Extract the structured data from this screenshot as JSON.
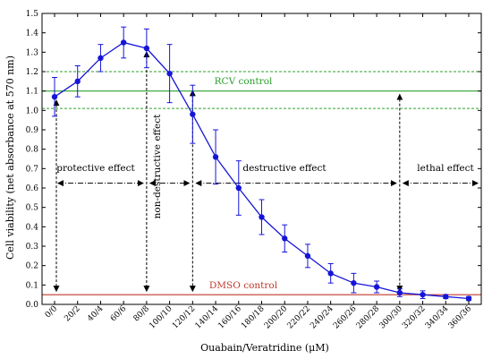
{
  "chart_data": {
    "type": "line",
    "xlabel": "Ouabain/Veratridine (μM)",
    "ylabel": "Cell viability (net absorbance at 570 nm)",
    "ylim": [
      0,
      1.5
    ],
    "y_ticks": [
      "0.0",
      "0.1",
      "0.2",
      "0.3",
      "0.4",
      "0.5",
      "0.6",
      "0.7",
      "0.8",
      "0.9",
      "1.0",
      "1.1",
      "1.2",
      "1.3",
      "1.4",
      "1.5"
    ],
    "categories": [
      "0/0",
      "20/2",
      "40/4",
      "60/6",
      "80/8",
      "100/10",
      "120/12",
      "140/14",
      "160/16",
      "180/18",
      "200/20",
      "220/22",
      "240/24",
      "260/26",
      "280/28",
      "300/30",
      "320/32",
      "340/34",
      "360/36"
    ],
    "series": [
      {
        "values": [
          1.07,
          1.15,
          1.27,
          1.35,
          1.32,
          1.19,
          0.98,
          0.76,
          0.6,
          0.45,
          0.34,
          0.25,
          0.16,
          0.11,
          0.09,
          0.06,
          0.05,
          0.04,
          0.03
        ],
        "errors": [
          0.1,
          0.08,
          0.07,
          0.08,
          0.1,
          0.15,
          0.15,
          0.14,
          0.14,
          0.09,
          0.07,
          0.06,
          0.05,
          0.05,
          0.03,
          0.02,
          0.02,
          0.01,
          0.01
        ],
        "color": "#1515d8"
      }
    ],
    "reference_lines": [
      {
        "label": "RCV control",
        "value": 1.1,
        "band": [
          1.01,
          1.2
        ],
        "color": "#2ca02c"
      },
      {
        "label": "DMSO control",
        "value": 0.05,
        "color": "#c0392b"
      }
    ],
    "annotations": {
      "protective": "protective effect",
      "non_destructive": "non-destructive effect",
      "destructive": "destructive effect",
      "lethal": "lethal effect"
    },
    "grid": false
  }
}
